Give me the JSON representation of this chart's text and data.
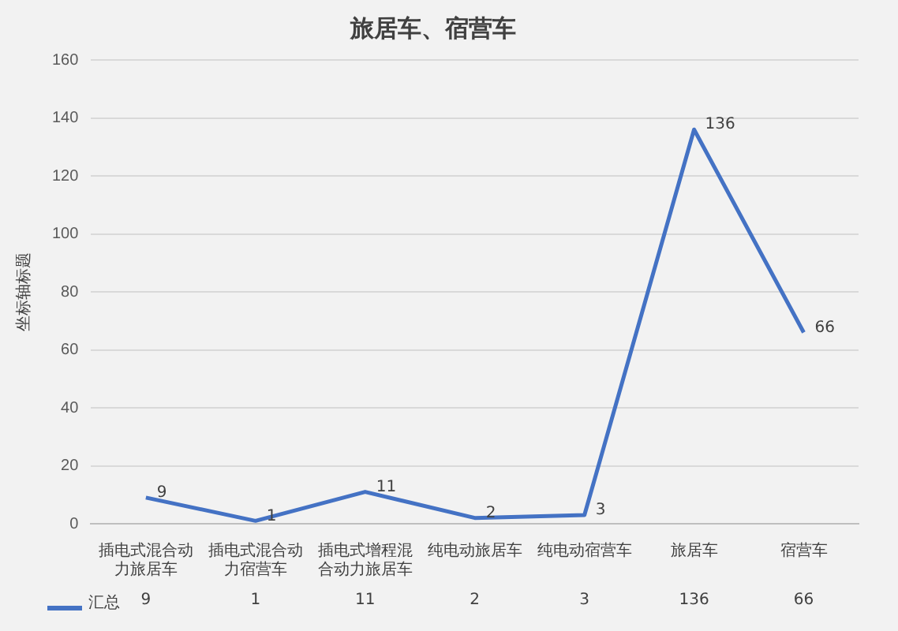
{
  "chart_data": {
    "type": "line",
    "title": "旅居车、宿营车",
    "ylabel": "坐标轴标题",
    "categories": [
      "插电式混合动力旅居车",
      "插电式混合动力宿营车",
      "插电式增程混合动力旅居车",
      "纯电动旅居车",
      "纯电动宿营车",
      "旅居车",
      "宿营车"
    ],
    "series": [
      {
        "name": "汇总",
        "color": "#4472c4",
        "values": [
          9,
          1,
          11,
          2,
          3,
          136,
          66
        ],
        "value_labels": [
          "9",
          "1",
          "11",
          "2",
          "3",
          "136",
          "66"
        ]
      }
    ],
    "ylim": [
      0,
      160
    ],
    "yticks": [
      0,
      20,
      40,
      60,
      80,
      100,
      120,
      140,
      160
    ],
    "grid": "y",
    "legend": "bottom",
    "data_labels": true,
    "marker": "none",
    "line_style": "solid"
  }
}
